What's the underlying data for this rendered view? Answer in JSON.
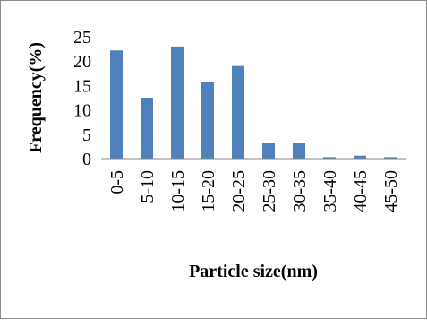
{
  "chart_data": {
    "type": "bar",
    "categories": [
      "0-5",
      "5-10",
      "10-15",
      "15-20",
      "20-25",
      "25-30",
      "30-35",
      "35-40",
      "40-45",
      "45-50"
    ],
    "values": [
      22.2,
      12.5,
      23.0,
      15.8,
      19.0,
      3.3,
      3.3,
      0.3,
      0.6,
      0.3
    ],
    "title": "",
    "xlabel": "Particle size(nm)",
    "ylabel": "Frequency(%)",
    "ylim": [
      0,
      25
    ],
    "yticks": [
      0,
      5,
      10,
      15,
      20,
      25
    ],
    "grid": false,
    "legend": "none",
    "bar_color": "#4f81bd"
  }
}
